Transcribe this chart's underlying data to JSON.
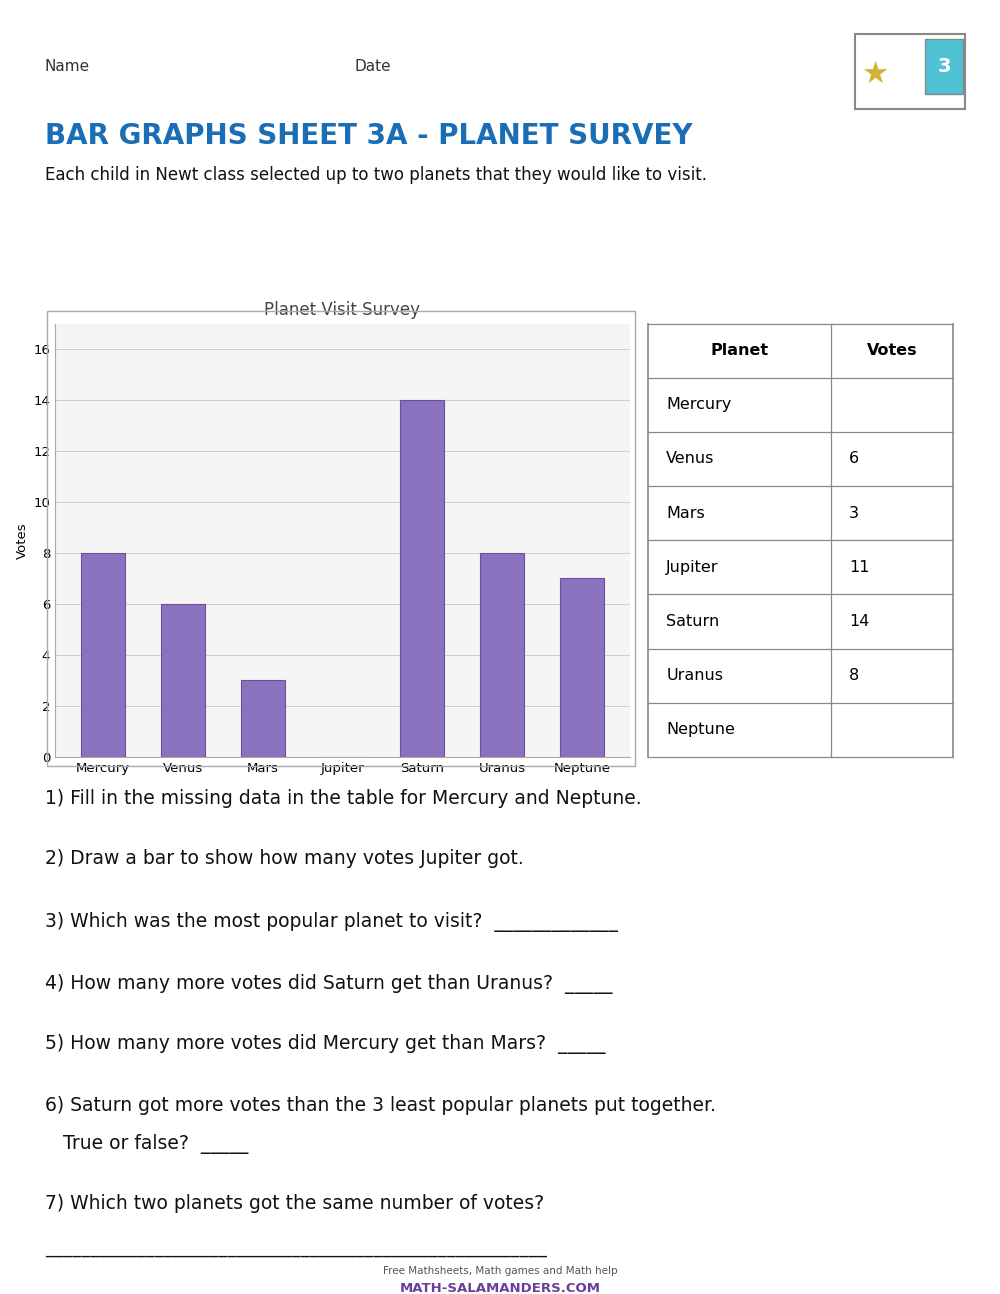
{
  "title": "BAR GRAPHS SHEET 3A - PLANET SURVEY",
  "subtitle": "Each child in Newt class selected up to two planets that they would like to visit.",
  "chart_title": "Planet Visit Survey",
  "planets": [
    "Mercury",
    "Venus",
    "Mars",
    "Jupiter",
    "Saturn",
    "Uranus",
    "Neptune"
  ],
  "votes": [
    8,
    6,
    3,
    0,
    14,
    8,
    7
  ],
  "bar_color": "#8B72BE",
  "bar_edge_color": "#6A4F9A",
  "ylabel": "Votes",
  "ylim": [
    0,
    17
  ],
  "yticks": [
    0,
    2,
    4,
    6,
    8,
    10,
    12,
    14,
    16
  ],
  "table_planets": [
    "Mercury",
    "Venus",
    "Mars",
    "Jupiter",
    "Saturn",
    "Uranus",
    "Neptune"
  ],
  "table_votes": [
    "",
    "6",
    "3",
    "11",
    "14",
    "8",
    ""
  ],
  "questions": [
    "1) Fill in the missing data in the table for Mercury and Neptune.",
    "2) Draw a bar to show how many votes Jupiter got.",
    "3) Which was the most popular planet to visit?  _____________",
    "4) How many more votes did Saturn get than Uranus?  _____",
    "5) How many more votes did Mercury get than Mars?  _____",
    "6) Saturn got more votes than the 3 least popular planets put together.",
    "   True or false?  _____",
    "7) Which two planets got the same number of votes?"
  ],
  "answer_line": "_______________________________________________________",
  "header_color": "#1a6eb5",
  "name_date_color": "#333333",
  "bg_color": "#ffffff",
  "chart_bg": "#f5f5f5",
  "grid_color": "#cccccc",
  "border_color": "#555555",
  "footer_text1": "Free Mathsheets, Math games and Math help",
  "footer_text2": "MATH-SALAMANDERS.COM"
}
